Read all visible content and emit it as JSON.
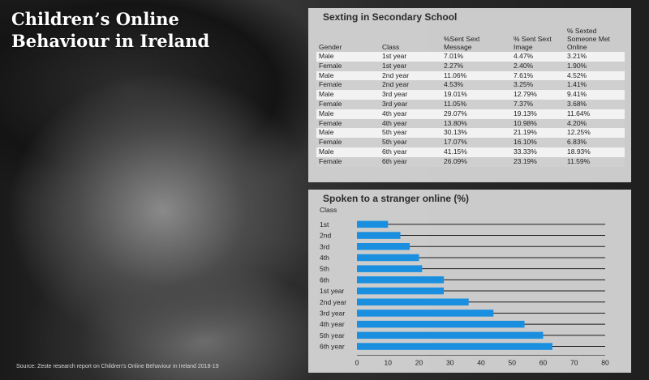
{
  "headline": "Children’s Online Behaviour in Ireland",
  "source": "Source: Zeste research report on Children's Online Behaviour in Ireland 2018-19",
  "table": {
    "title": "Sexting in Secondary School",
    "columns": [
      "Gender",
      "Class",
      "%Sent Sext Message",
      "% Sent Sext Image",
      "% Sexted Someone Met Online"
    ],
    "rows": [
      [
        "Male",
        "1st year",
        "7.01%",
        "4.47%",
        "3.21%"
      ],
      [
        "Female",
        "1st year",
        "2.27%",
        "2.40%",
        "1.90%"
      ],
      [
        "Male",
        "2nd year",
        "11.06%",
        "7.61%",
        "4.52%"
      ],
      [
        "Female",
        "2nd year",
        "4.53%",
        "3.25%",
        "1.41%"
      ],
      [
        "Male",
        "3rd year",
        "19.01%",
        "12.79%",
        "9.41%"
      ],
      [
        "Female",
        "3rd year",
        "11.05%",
        "7.37%",
        "3.68%"
      ],
      [
        "Male",
        "4th year",
        "29.07%",
        "19.13%",
        "11.64%"
      ],
      [
        "Female",
        "4th year",
        "13.80%",
        "10.98%",
        "4.20%"
      ],
      [
        "Male",
        "5th year",
        "30.13%",
        "21.19%",
        "12.25%"
      ],
      [
        "Female",
        "5th year",
        "17.07%",
        "16.10%",
        "6.83%"
      ],
      [
        "Male",
        "6th year",
        "41.15%",
        "33.33%",
        "18.93%"
      ],
      [
        "Female",
        "6th year",
        "26.09%",
        "23.19%",
        "11.59%"
      ]
    ]
  },
  "chart_data": {
    "type": "bar",
    "orientation": "horizontal",
    "title": "Spoken to a stranger online (%)",
    "category_axis_label": "Class",
    "categories": [
      "1st",
      "2nd",
      "3rd",
      "4th",
      "5th",
      "6th",
      "1st year",
      "2nd year",
      "3rd year",
      "4th year",
      "5th year",
      "6th year"
    ],
    "values": [
      10,
      14,
      17,
      20,
      21,
      28,
      28,
      36,
      44,
      54,
      60,
      63
    ],
    "xlim": [
      0,
      80
    ],
    "xticks": [
      0,
      10,
      20,
      30,
      40,
      50,
      60,
      70,
      80
    ],
    "bar_color": "#1a8fe0",
    "track_color": "#1c1c1c",
    "grid": false
  }
}
